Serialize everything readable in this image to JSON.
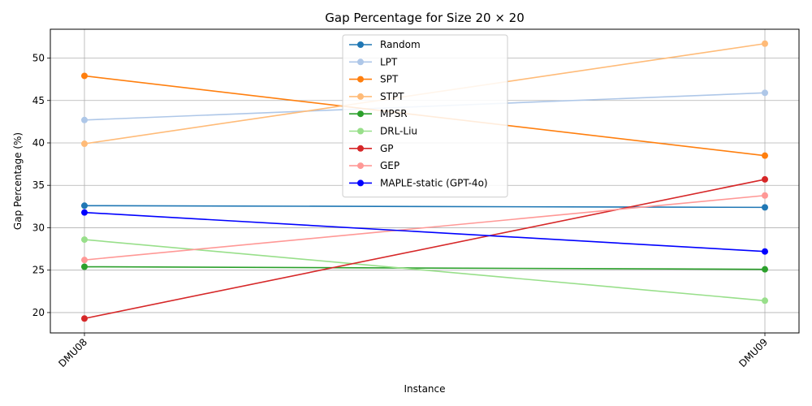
{
  "chart_data": {
    "type": "line",
    "title": "Gap Percentage for Size 20 × 20",
    "xlabel": "Instance",
    "ylabel": "Gap Percentage (%)",
    "categories": [
      "DMU08",
      "DMU09"
    ],
    "ylim": [
      17.6,
      53.4
    ],
    "yticks": [
      20,
      25,
      30,
      35,
      40,
      45,
      50
    ],
    "grid": true,
    "legend_position": "top-center",
    "series": [
      {
        "name": "Random",
        "color": "#1f77b4",
        "values": [
          32.6,
          32.4
        ]
      },
      {
        "name": "LPT",
        "color": "#aec7e8",
        "values": [
          42.7,
          45.9
        ]
      },
      {
        "name": "SPT",
        "color": "#ff7f0e",
        "values": [
          47.9,
          38.5
        ]
      },
      {
        "name": "STPT",
        "color": "#ffbb78",
        "values": [
          39.9,
          51.7
        ]
      },
      {
        "name": "MPSR",
        "color": "#2ca02c",
        "values": [
          25.4,
          25.1
        ]
      },
      {
        "name": "DRL-Liu",
        "color": "#98df8a",
        "values": [
          28.6,
          21.4
        ]
      },
      {
        "name": "GP",
        "color": "#d62728",
        "values": [
          19.3,
          35.7
        ]
      },
      {
        "name": "GEP",
        "color": "#ff9896",
        "values": [
          26.2,
          33.8
        ]
      },
      {
        "name": "MAPLE-static (GPT-4o)",
        "color": "#0000ff",
        "values": [
          31.8,
          27.2
        ]
      }
    ]
  }
}
